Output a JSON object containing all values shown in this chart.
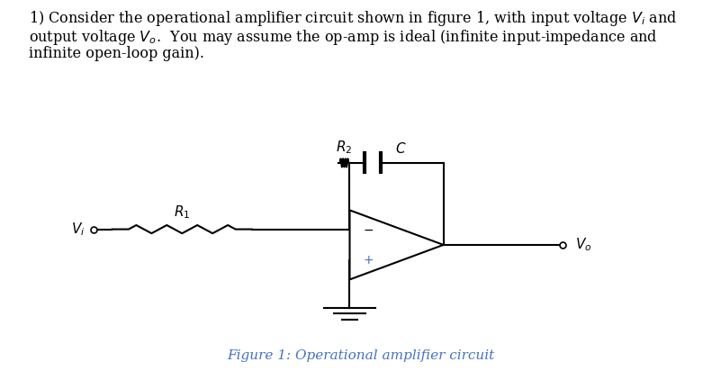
{
  "figure_caption": "Figure 1: Operational amplifier circuit",
  "text_color": "#000000",
  "caption_color": "#4472C4",
  "line_color": "#000000",
  "background_color": "#ffffff",
  "title_fontsize": 11.5,
  "caption_fontsize": 11
}
